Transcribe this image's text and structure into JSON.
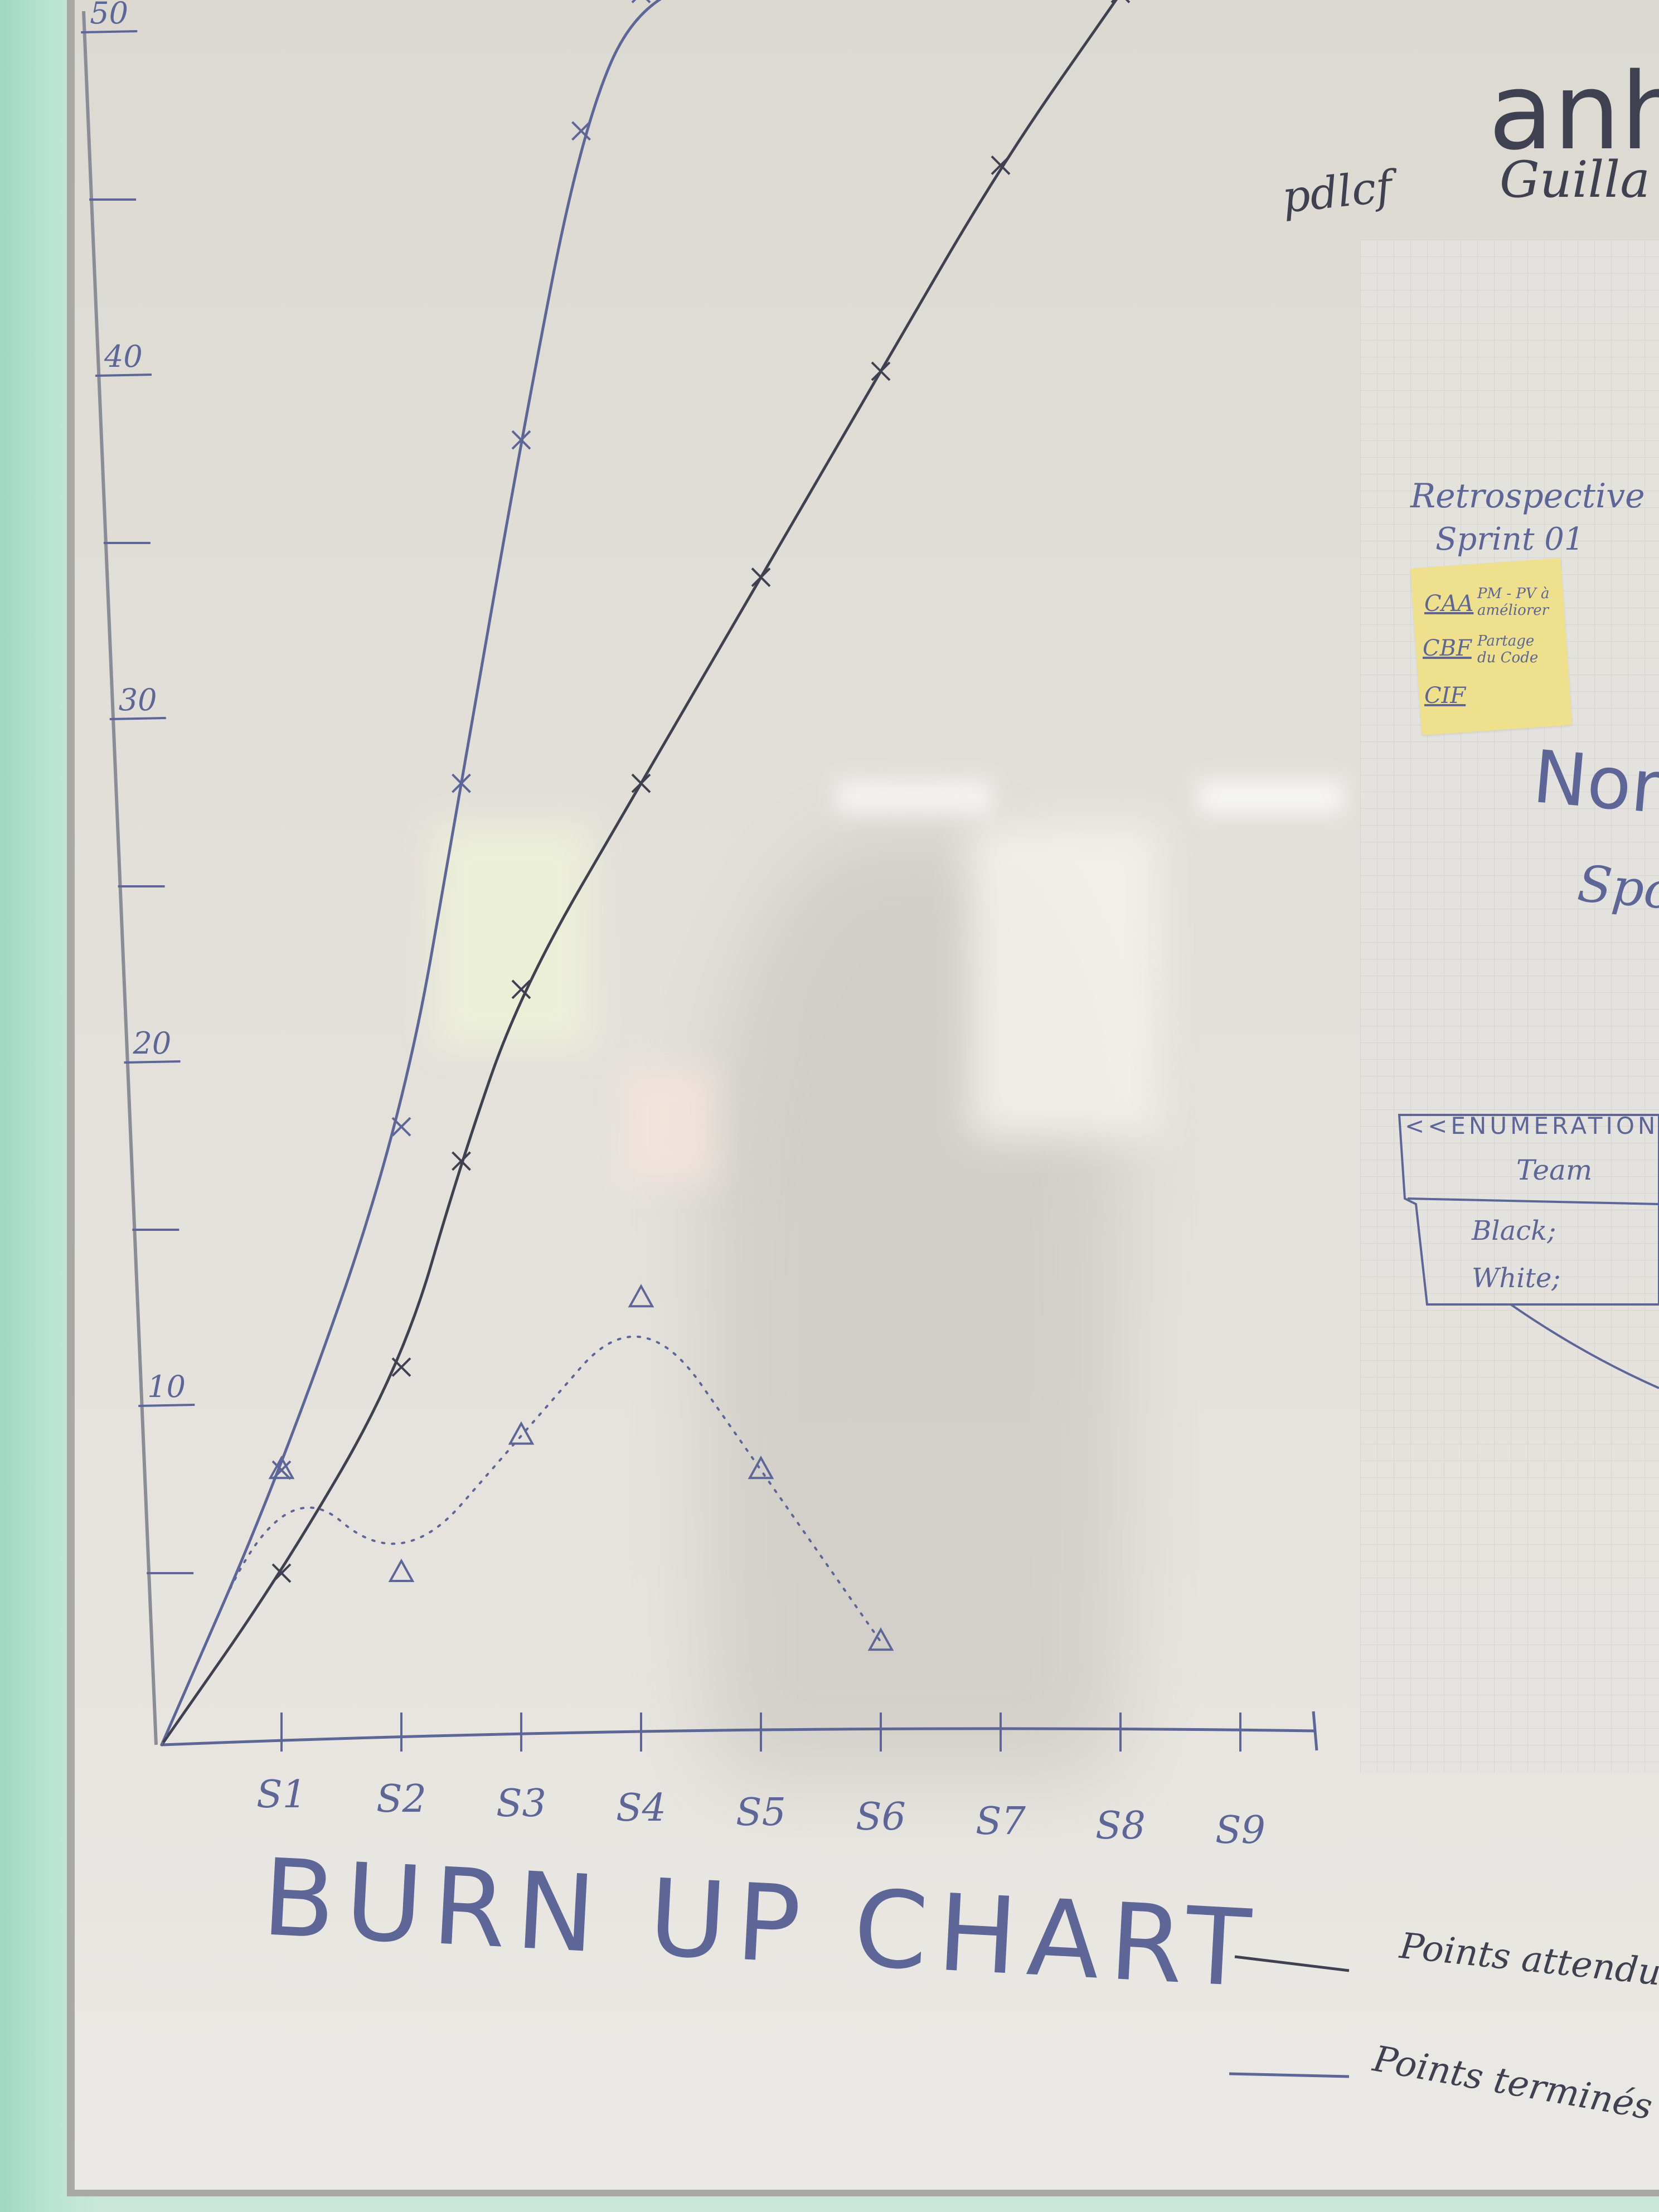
{
  "chart_data": {
    "type": "line",
    "title": "BURN UP CHART",
    "categories": [
      "S1",
      "S2",
      "S3",
      "S4",
      "S5",
      "S6",
      "S7",
      "S8",
      "S9"
    ],
    "y_ticks": [
      "10",
      "20",
      "30",
      "40",
      "50"
    ],
    "ylim": [
      0,
      50
    ],
    "series": [
      {
        "name": "Points attendus",
        "marker": "x",
        "x": [
          0,
          1,
          2,
          2.5,
          3,
          3.5,
          4,
          5,
          6
        ],
        "values": [
          0,
          8,
          18,
          28,
          38,
          47,
          51,
          51.6,
          52
        ]
      },
      {
        "name": "Points terminés",
        "marker": "x",
        "x": [
          0,
          1,
          2,
          2.5,
          3,
          4,
          5,
          6,
          7,
          8
        ],
        "values": [
          0,
          5,
          11,
          17,
          22,
          28,
          34,
          40,
          46,
          51
        ]
      },
      {
        "name": "",
        "marker": "triangle",
        "line_style": "dotted",
        "x": [
          0,
          1,
          2,
          3,
          4,
          5,
          6
        ],
        "values": [
          0,
          8,
          5,
          9,
          13,
          8,
          3
        ]
      }
    ]
  },
  "legend": {
    "expected_label": "Points attendus",
    "done_label": "Points terminés"
  },
  "board_notes": {
    "header_big": "anh",
    "header_names": [
      "pdlcf",
      "Guilla"
    ],
    "retro_title_1": "Retrospective",
    "retro_title_2": "Sprint 01",
    "sticky_rows": [
      {
        "code": "CAA",
        "text": "PM - PV à améliorer"
      },
      {
        "code": "CBF",
        "text": "Partage du Code"
      },
      {
        "code": "CIF",
        "text": ""
      }
    ],
    "nom_text": "Nom",
    "spo_text": "Spo",
    "uml_stereotype": "<<ENUMERATION>>",
    "uml_name": "Team",
    "uml_values": [
      "Black;",
      "White;"
    ]
  },
  "colors": {
    "ink_blue": "#5d6696",
    "ink_dark": "#3f4150",
    "board": "#e2dfd9",
    "sticky": "#eee08c"
  }
}
